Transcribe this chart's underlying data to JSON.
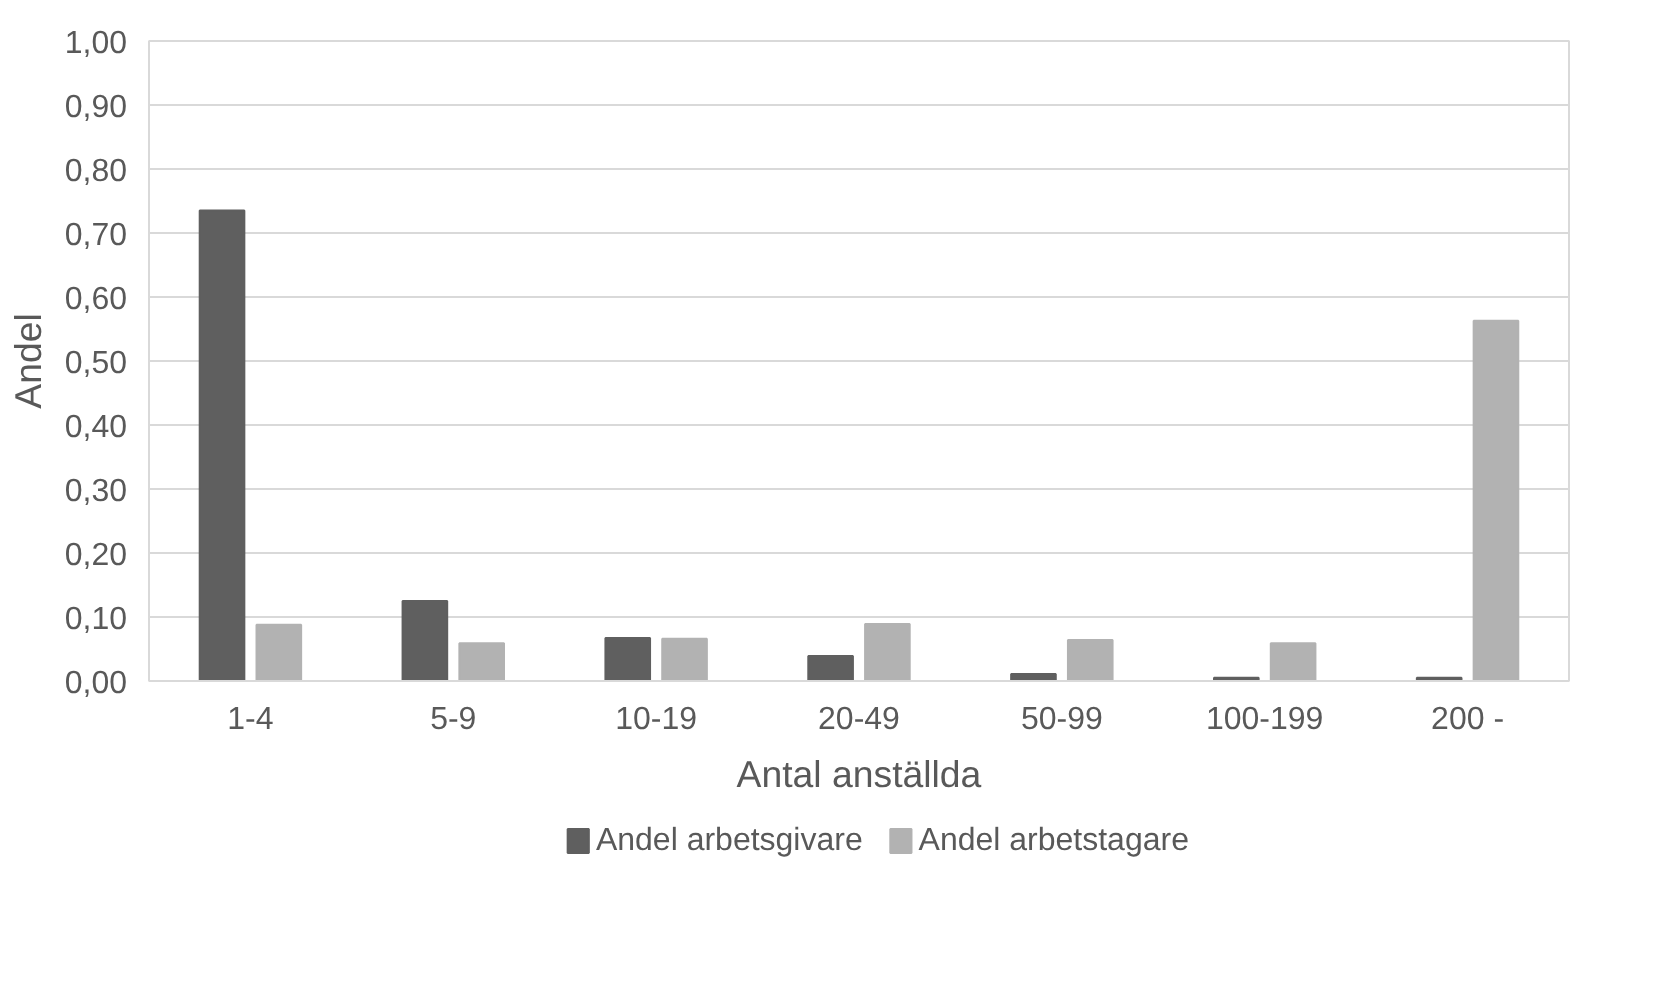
{
  "chart_data": {
    "type": "bar",
    "xlabel": "Antal anställda",
    "ylabel": "Andel",
    "categories": [
      "1-4",
      "5-9",
      "10-19",
      "20-49",
      "50-99",
      "100-199",
      "200 -"
    ],
    "series": [
      {
        "name": "Andel arbetsgivare",
        "color": "#5f5f5f",
        "values": [
          0.735,
          0.125,
          0.067,
          0.039,
          0.011,
          0.005,
          0.005
        ]
      },
      {
        "name": "Andel arbetstagare",
        "color": "#b2b2b2",
        "values": [
          0.088,
          0.059,
          0.066,
          0.089,
          0.064,
          0.059,
          0.563
        ]
      }
    ],
    "ylim": [
      0,
      1
    ],
    "yticks": [
      {
        "value": 0,
        "label": "0,00"
      },
      {
        "value": 0.1,
        "label": "0,10"
      },
      {
        "value": 0.2,
        "label": "0,20"
      },
      {
        "value": 0.3,
        "label": "0,30"
      },
      {
        "value": 0.4,
        "label": "0,40"
      },
      {
        "value": 0.5,
        "label": "0,50"
      },
      {
        "value": 0.6,
        "label": "0,60"
      },
      {
        "value": 0.7,
        "label": "0,70"
      },
      {
        "value": 0.8,
        "label": "0,80"
      },
      {
        "value": 0.9,
        "label": "0,90"
      },
      {
        "value": 1,
        "label": "1,00"
      }
    ],
    "grid": "y",
    "legend": "bottom"
  }
}
